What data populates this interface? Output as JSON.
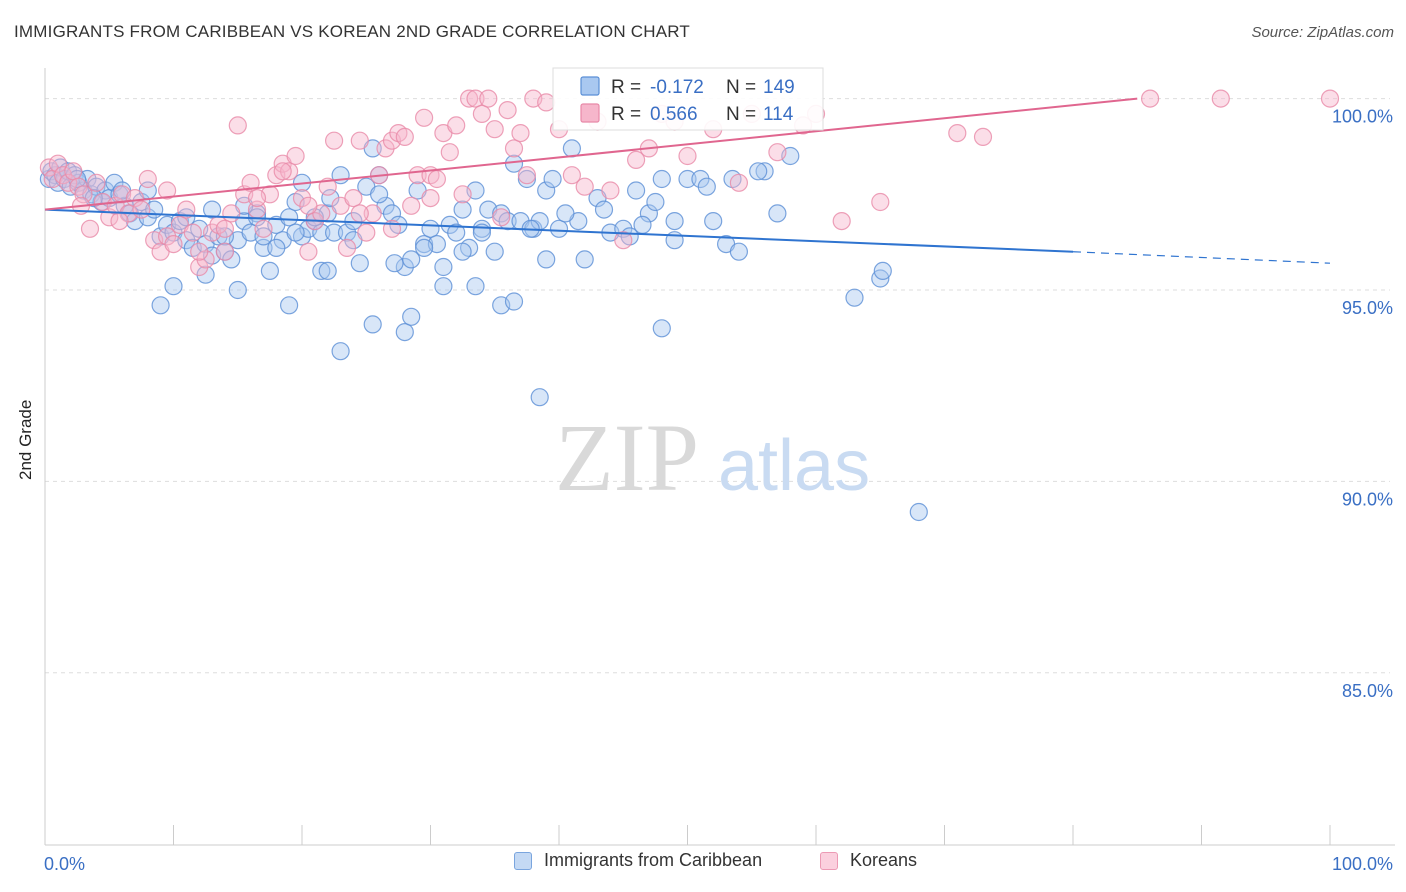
{
  "header": {
    "title": "IMMIGRANTS FROM CARIBBEAN VS KOREAN 2ND GRADE CORRELATION CHART",
    "source": "Source: ZipAtlas.com"
  },
  "watermark": {
    "zip": "ZIP",
    "atlas": "atlas"
  },
  "colors": {
    "blue_fill": "#a9c8f0",
    "blue_stroke": "#5b8fd6",
    "blue_line": "#2f74d0",
    "pink_fill": "#f6b6cb",
    "pink_stroke": "#e889a8",
    "pink_line": "#e0668f",
    "tick_label": "#3a6fc4",
    "grid": "#dddddd"
  },
  "chart_data": {
    "type": "scatter",
    "xlabel": "",
    "ylabel": "2nd Grade",
    "xlim": [
      0,
      100
    ],
    "ylim": [
      80.5,
      100.8
    ],
    "x_tick_labels": [
      {
        "value": 0,
        "label": "0.0%"
      },
      {
        "value": 100,
        "label": "100.0%"
      }
    ],
    "y_tick_labels": [
      {
        "value": 100,
        "label": "100.0%"
      },
      {
        "value": 95,
        "label": "95.0%"
      },
      {
        "value": 90,
        "label": "90.0%"
      },
      {
        "value": 85,
        "label": "85.0%"
      }
    ],
    "grid": true,
    "legend_placement": "top-center",
    "stats_legend": [
      {
        "r_label": "R =",
        "r_value": "-0.172",
        "n_label": "N =",
        "n_value": "149"
      },
      {
        "r_label": "R =",
        "r_value": "0.566",
        "n_label": "N =",
        "n_value": "114"
      }
    ],
    "series": [
      {
        "name": "Immigrants from Caribbean",
        "color": "blue",
        "trend": {
          "x0": 0,
          "y0": 97.1,
          "x1": 80,
          "y1": 96.0,
          "dash_to": 100,
          "dash_y": 95.7
        },
        "points": [
          [
            0.3,
            97.9
          ],
          [
            0.5,
            98.1
          ],
          [
            0.8,
            98.0
          ],
          [
            1.0,
            97.8
          ],
          [
            1.2,
            98.2
          ],
          [
            1.5,
            97.9
          ],
          [
            1.8,
            98.1
          ],
          [
            2.0,
            97.7
          ],
          [
            2.3,
            98.0
          ],
          [
            2.6,
            97.8
          ],
          [
            3.0,
            97.6
          ],
          [
            3.3,
            97.9
          ],
          [
            3.6,
            97.5
          ],
          [
            4.0,
            97.7
          ],
          [
            4.4,
            97.3
          ],
          [
            4.7,
            97.6
          ],
          [
            5.0,
            97.4
          ],
          [
            5.4,
            97.8
          ],
          [
            5.8,
            97.5
          ],
          [
            6.2,
            97.2
          ],
          [
            6.6,
            97.0
          ],
          [
            7.0,
            96.8
          ],
          [
            7.5,
            97.3
          ],
          [
            8.0,
            96.9
          ],
          [
            8.5,
            97.1
          ],
          [
            9.0,
            96.4
          ],
          [
            9.5,
            96.7
          ],
          [
            10.0,
            96.5
          ],
          [
            10.5,
            96.8
          ],
          [
            11.0,
            96.3
          ],
          [
            11.5,
            96.1
          ],
          [
            12.0,
            96.6
          ],
          [
            12.5,
            96.2
          ],
          [
            13.0,
            95.9
          ],
          [
            13.5,
            96.4
          ],
          [
            14.0,
            96.0
          ],
          [
            14.5,
            95.8
          ],
          [
            15.0,
            96.3
          ],
          [
            15.5,
            96.8
          ],
          [
            16.0,
            96.5
          ],
          [
            16.5,
            97.0
          ],
          [
            17.0,
            96.1
          ],
          [
            17.5,
            95.5
          ],
          [
            18.0,
            96.7
          ],
          [
            18.5,
            96.3
          ],
          [
            19.0,
            96.9
          ],
          [
            19.5,
            97.3
          ],
          [
            20.0,
            96.4
          ],
          [
            20.5,
            96.6
          ],
          [
            21.0,
            96.8
          ],
          [
            21.5,
            96.5
          ],
          [
            22.0,
            97.0
          ],
          [
            22.5,
            96.5
          ],
          [
            23.0,
            98.0
          ],
          [
            23.5,
            96.5
          ],
          [
            24.0,
            96.8
          ],
          [
            24.5,
            95.7
          ],
          [
            25.0,
            97.7
          ],
          [
            25.5,
            98.7
          ],
          [
            26.0,
            98.0
          ],
          [
            26.5,
            97.2
          ],
          [
            27.0,
            97.0
          ],
          [
            27.5,
            96.7
          ],
          [
            28.0,
            95.6
          ],
          [
            28.5,
            95.8
          ],
          [
            29.0,
            97.6
          ],
          [
            29.5,
            96.2
          ],
          [
            30.0,
            96.6
          ],
          [
            30.5,
            96.2
          ],
          [
            31.0,
            95.6
          ],
          [
            31.5,
            96.7
          ],
          [
            32.0,
            96.5
          ],
          [
            32.5,
            97.1
          ],
          [
            33.0,
            96.1
          ],
          [
            33.5,
            97.6
          ],
          [
            34.0,
            96.6
          ],
          [
            34.5,
            97.1
          ],
          [
            35.0,
            96.0
          ],
          [
            35.5,
            97.0
          ],
          [
            36.0,
            96.8
          ],
          [
            36.5,
            98.3
          ],
          [
            37.0,
            96.8
          ],
          [
            37.5,
            97.9
          ],
          [
            38.0,
            96.6
          ],
          [
            38.5,
            96.8
          ],
          [
            39.0,
            97.6
          ],
          [
            39.5,
            97.9
          ],
          [
            40.0,
            96.6
          ],
          [
            41.0,
            98.7
          ],
          [
            41.5,
            96.8
          ],
          [
            42.0,
            95.8
          ],
          [
            43.0,
            97.4
          ],
          [
            44.0,
            96.5
          ],
          [
            45.0,
            96.6
          ],
          [
            46.0,
            97.6
          ],
          [
            47.0,
            97.0
          ],
          [
            48.0,
            97.9
          ],
          [
            49.0,
            96.8
          ],
          [
            50.0,
            97.9
          ],
          [
            51.0,
            97.9
          ],
          [
            52.0,
            96.8
          ],
          [
            53.0,
            96.2
          ],
          [
            54.0,
            96.0
          ],
          [
            56.0,
            98.1
          ],
          [
            58.0,
            98.5
          ],
          [
            57.0,
            97.0
          ],
          [
            63.0,
            94.8
          ],
          [
            65.0,
            95.3
          ],
          [
            65.2,
            95.5
          ],
          [
            68.0,
            89.2
          ],
          [
            10.0,
            95.1
          ],
          [
            12.5,
            95.4
          ],
          [
            15.0,
            95.0
          ],
          [
            19.0,
            94.6
          ],
          [
            21.5,
            95.5
          ],
          [
            23.0,
            93.4
          ],
          [
            25.5,
            94.1
          ],
          [
            28.0,
            93.9
          ],
          [
            28.5,
            94.3
          ],
          [
            31.0,
            95.1
          ],
          [
            33.5,
            95.1
          ],
          [
            35.5,
            94.6
          ],
          [
            36.5,
            94.7
          ],
          [
            38.5,
            92.2
          ],
          [
            48.0,
            94.0
          ],
          [
            9.0,
            94.6
          ],
          [
            2.5,
            97.9
          ],
          [
            3.8,
            97.4
          ],
          [
            6.0,
            97.6
          ],
          [
            8.0,
            97.6
          ],
          [
            14.0,
            96.4
          ],
          [
            17.0,
            96.4
          ],
          [
            20.0,
            97.8
          ],
          [
            22.2,
            97.4
          ],
          [
            24.0,
            96.3
          ],
          [
            26.0,
            97.5
          ],
          [
            27.2,
            95.7
          ],
          [
            29.5,
            96.1
          ],
          [
            32.5,
            96.0
          ],
          [
            34.0,
            96.5
          ],
          [
            37.8,
            96.6
          ],
          [
            39.0,
            95.8
          ],
          [
            40.5,
            97.0
          ],
          [
            43.5,
            97.1
          ],
          [
            45.5,
            96.4
          ],
          [
            46.5,
            96.7
          ],
          [
            47.5,
            97.3
          ],
          [
            49.0,
            96.3
          ],
          [
            51.5,
            97.7
          ],
          [
            53.5,
            97.9
          ],
          [
            55.5,
            98.1
          ],
          [
            11.0,
            96.9
          ],
          [
            13.0,
            97.1
          ],
          [
            15.5,
            97.2
          ],
          [
            16.5,
            96.9
          ],
          [
            18.0,
            96.1
          ],
          [
            19.5,
            96.5
          ],
          [
            21.0,
            96.9
          ],
          [
            22.0,
            95.5
          ]
        ]
      },
      {
        "name": "Koreans",
        "color": "pink",
        "trend": {
          "x0": 0,
          "y0": 97.1,
          "x1": 85,
          "y1": 100.0
        },
        "points": [
          [
            0.3,
            98.2
          ],
          [
            0.6,
            97.9
          ],
          [
            1.0,
            98.3
          ],
          [
            1.4,
            98.0
          ],
          [
            1.8,
            97.8
          ],
          [
            2.2,
            98.1
          ],
          [
            2.6,
            97.7
          ],
          [
            3.0,
            97.5
          ],
          [
            3.5,
            96.6
          ],
          [
            4.0,
            97.8
          ],
          [
            4.5,
            97.3
          ],
          [
            5.0,
            96.9
          ],
          [
            5.5,
            97.2
          ],
          [
            6.0,
            97.5
          ],
          [
            6.5,
            97.0
          ],
          [
            7.0,
            97.4
          ],
          [
            7.5,
            97.1
          ],
          [
            8.0,
            97.9
          ],
          [
            8.5,
            96.3
          ],
          [
            9.0,
            96.0
          ],
          [
            9.5,
            96.4
          ],
          [
            10.0,
            96.2
          ],
          [
            10.5,
            96.7
          ],
          [
            11.0,
            97.1
          ],
          [
            11.5,
            96.5
          ],
          [
            12.0,
            95.6
          ],
          [
            12.5,
            95.8
          ],
          [
            13.0,
            96.5
          ],
          [
            13.5,
            96.7
          ],
          [
            14.0,
            96.0
          ],
          [
            14.5,
            97.0
          ],
          [
            15.0,
            99.3
          ],
          [
            15.5,
            97.5
          ],
          [
            16.0,
            97.8
          ],
          [
            16.5,
            97.1
          ],
          [
            17.0,
            96.6
          ],
          [
            17.5,
            97.5
          ],
          [
            18.0,
            98.0
          ],
          [
            18.5,
            98.3
          ],
          [
            19.0,
            98.1
          ],
          [
            19.5,
            98.5
          ],
          [
            20.0,
            97.4
          ],
          [
            20.5,
            96.0
          ],
          [
            21.0,
            96.8
          ],
          [
            21.5,
            97.0
          ],
          [
            22.0,
            97.7
          ],
          [
            22.5,
            98.9
          ],
          [
            23.0,
            97.2
          ],
          [
            23.5,
            96.1
          ],
          [
            24.0,
            97.4
          ],
          [
            24.5,
            98.9
          ],
          [
            25.0,
            96.5
          ],
          [
            25.5,
            97.0
          ],
          [
            26.0,
            98.0
          ],
          [
            26.5,
            98.7
          ],
          [
            27.0,
            98.9
          ],
          [
            27.5,
            99.1
          ],
          [
            28.0,
            99.0
          ],
          [
            28.5,
            97.2
          ],
          [
            29.0,
            98.0
          ],
          [
            29.5,
            99.5
          ],
          [
            30.0,
            98.0
          ],
          [
            30.5,
            97.9
          ],
          [
            31.0,
            99.1
          ],
          [
            31.5,
            98.6
          ],
          [
            32.0,
            99.3
          ],
          [
            32.5,
            97.5
          ],
          [
            33.0,
            100.0
          ],
          [
            33.5,
            100.0
          ],
          [
            34.0,
            99.6
          ],
          [
            34.5,
            100.0
          ],
          [
            35.0,
            99.2
          ],
          [
            35.5,
            96.9
          ],
          [
            36.0,
            99.7
          ],
          [
            36.5,
            98.7
          ],
          [
            37.0,
            99.1
          ],
          [
            37.5,
            98.0
          ],
          [
            38.0,
            100.0
          ],
          [
            39.0,
            99.9
          ],
          [
            40.0,
            99.2
          ],
          [
            41.0,
            98.0
          ],
          [
            42.0,
            97.7
          ],
          [
            43.0,
            99.4
          ],
          [
            44.0,
            97.6
          ],
          [
            45.0,
            96.3
          ],
          [
            46.0,
            98.4
          ],
          [
            47.0,
            98.7
          ],
          [
            48.0,
            99.6
          ],
          [
            49.0,
            99.4
          ],
          [
            50.0,
            98.5
          ],
          [
            52.0,
            99.2
          ],
          [
            54.0,
            97.8
          ],
          [
            55.0,
            99.6
          ],
          [
            57.0,
            98.6
          ],
          [
            59.0,
            99.3
          ],
          [
            60.0,
            99.6
          ],
          [
            62.0,
            96.8
          ],
          [
            65.0,
            97.3
          ],
          [
            71.0,
            99.1
          ],
          [
            73.0,
            99.0
          ],
          [
            86.0,
            100.0
          ],
          [
            91.5,
            100.0
          ],
          [
            100.0,
            100.0
          ],
          [
            2.8,
            97.2
          ],
          [
            5.8,
            96.8
          ],
          [
            9.5,
            97.6
          ],
          [
            12.0,
            96.0
          ],
          [
            14.0,
            96.6
          ],
          [
            16.5,
            97.4
          ],
          [
            18.5,
            98.1
          ],
          [
            20.5,
            97.2
          ],
          [
            24.5,
            97.0
          ],
          [
            27.0,
            96.6
          ],
          [
            30.0,
            97.4
          ]
        ]
      }
    ]
  },
  "legend_bottom": [
    {
      "label": "Immigrants from Caribbean"
    },
    {
      "label": "Koreans"
    }
  ]
}
